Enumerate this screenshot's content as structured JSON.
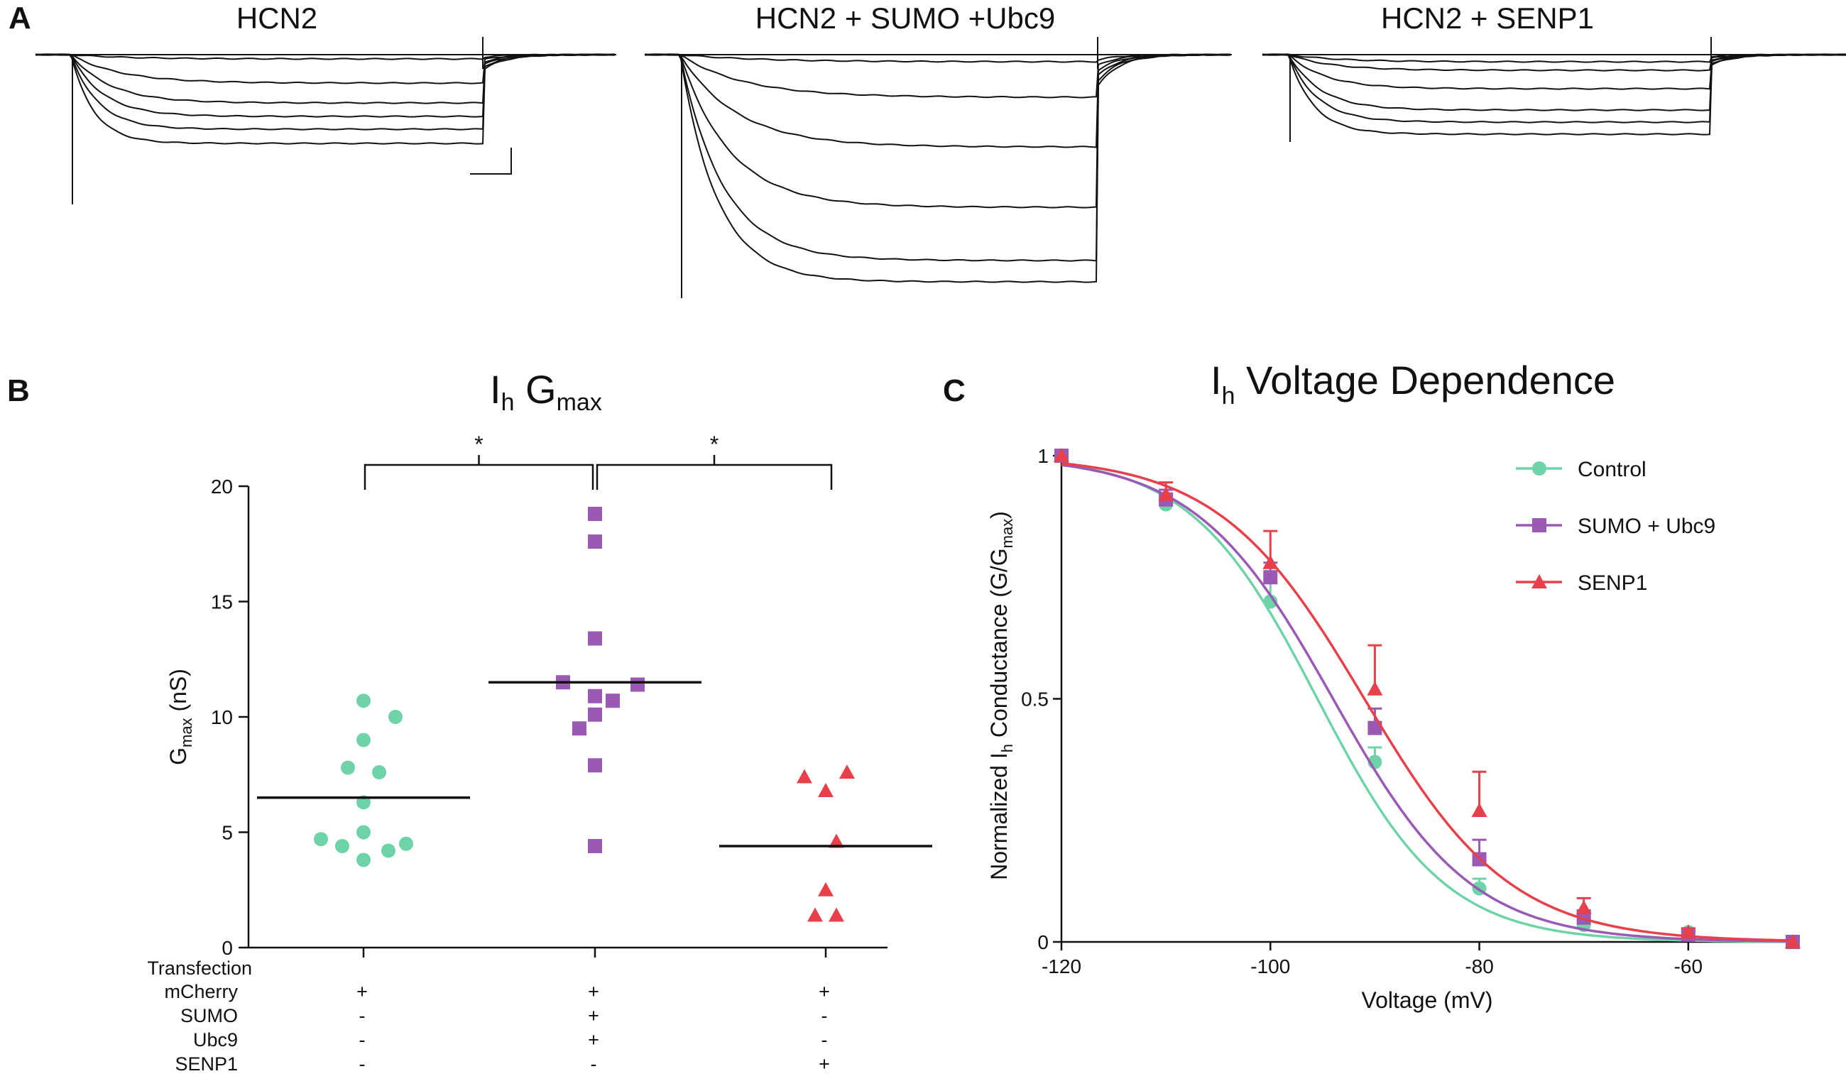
{
  "panel_labels": {
    "a": "A",
    "b": "B",
    "c": "C"
  },
  "traces": {
    "titles": [
      "HCN2",
      "HCN2 + SUMO +Ubc9",
      "HCN2 + SENP1"
    ]
  },
  "colors": {
    "control": "#6fd3a8",
    "sumo": "#9b59b6",
    "senp1": "#e8404a",
    "line": "#111111"
  },
  "chart_data": [
    {
      "type": "scatter",
      "title_main": "I",
      "title_sub1": "h",
      "title_mid": " G",
      "title_sub2": "max",
      "ylabel_main": "G",
      "ylabel_sub": "max",
      "ylabel_rest": " (nS)",
      "ylim": [
        0,
        20
      ],
      "yticks": [
        "0",
        "5",
        "10",
        "15",
        "20"
      ],
      "significance": [
        "*",
        "*"
      ],
      "groups": [
        {
          "name": "mCherry",
          "color": "#6fd3a8",
          "marker": "circle",
          "mean": 6.5,
          "values": [
            10.7,
            10.0,
            9.0,
            7.8,
            7.6,
            6.3,
            5.0,
            4.7,
            4.4,
            4.2,
            4.5,
            3.8
          ]
        },
        {
          "name": "SUMO + Ubc9",
          "color": "#9b59b6",
          "marker": "square",
          "mean": 11.5,
          "values": [
            18.8,
            17.6,
            13.4,
            11.5,
            11.4,
            10.7,
            10.9,
            10.1,
            9.5,
            7.9,
            4.4
          ]
        },
        {
          "name": "SENP1",
          "color": "#e8404a",
          "marker": "triangle",
          "mean": 4.4,
          "values": [
            7.4,
            7.6,
            6.8,
            4.6,
            2.5,
            1.4,
            1.4
          ]
        }
      ],
      "transfection": {
        "header": "Transfection",
        "rows": [
          {
            "label": "mCherry",
            "marks": [
              "+",
              "+",
              "+"
            ]
          },
          {
            "label": "SUMO",
            "marks": [
              "-",
              "+",
              "-"
            ]
          },
          {
            "label": "Ubc9",
            "marks": [
              "-",
              "+",
              "-"
            ]
          },
          {
            "label": "SENP1",
            "marks": [
              "-",
              "-",
              "+"
            ]
          }
        ]
      }
    },
    {
      "type": "line",
      "title_main": "I",
      "title_sub": "h",
      "title_rest": " Voltage Dependence",
      "xlabel": "Voltage (mV)",
      "ylabel_main": "Normalized I",
      "ylabel_sub1": "h",
      "ylabel_mid": " Conductance (G/G",
      "ylabel_sub2": "max",
      "ylabel_end": ")",
      "xlim": [
        -120,
        -50
      ],
      "ylim": [
        0,
        1
      ],
      "xticks": [
        "-120",
        "-100",
        "-80",
        "-60"
      ],
      "yticks": [
        "0",
        "0.5",
        "1"
      ],
      "series": [
        {
          "name": "Control",
          "color": "#6fd3a8",
          "marker": "circle",
          "v_half": -95.5,
          "slope": 6.1,
          "x": [
            -120,
            -110,
            -100,
            -90,
            -80,
            -70,
            -60,
            -50
          ],
          "y": [
            1.0,
            0.9,
            0.7,
            0.37,
            0.11,
            0.035,
            0.02,
            0.0
          ],
          "err": [
            0,
            0.02,
            0.04,
            0.03,
            0.02,
            0.01,
            0.008,
            0
          ]
        },
        {
          "name": "SUMO + Ubc9",
          "color": "#9b59b6",
          "marker": "square",
          "v_half": -94.0,
          "slope": 6.6,
          "x": [
            -120,
            -110,
            -100,
            -90,
            -80,
            -70,
            -60,
            -50
          ],
          "y": [
            1.0,
            0.91,
            0.75,
            0.44,
            0.17,
            0.05,
            0.015,
            0.0
          ],
          "err": [
            0,
            0.02,
            0.03,
            0.04,
            0.04,
            0.015,
            0.008,
            0
          ]
        },
        {
          "name": "SENP1",
          "color": "#e8404a",
          "marker": "triangle",
          "v_half": -91.0,
          "slope": 7.0,
          "x": [
            -120,
            -110,
            -100,
            -90,
            -80,
            -70,
            -60,
            -50
          ],
          "y": [
            1.0,
            0.92,
            0.78,
            0.52,
            0.27,
            0.07,
            0.02,
            0.0
          ],
          "err": [
            0,
            0.025,
            0.065,
            0.09,
            0.08,
            0.02,
            0.008,
            0
          ]
        }
      ],
      "legend": [
        "Control",
        "SUMO + Ubc9",
        "SENP1"
      ]
    }
  ]
}
